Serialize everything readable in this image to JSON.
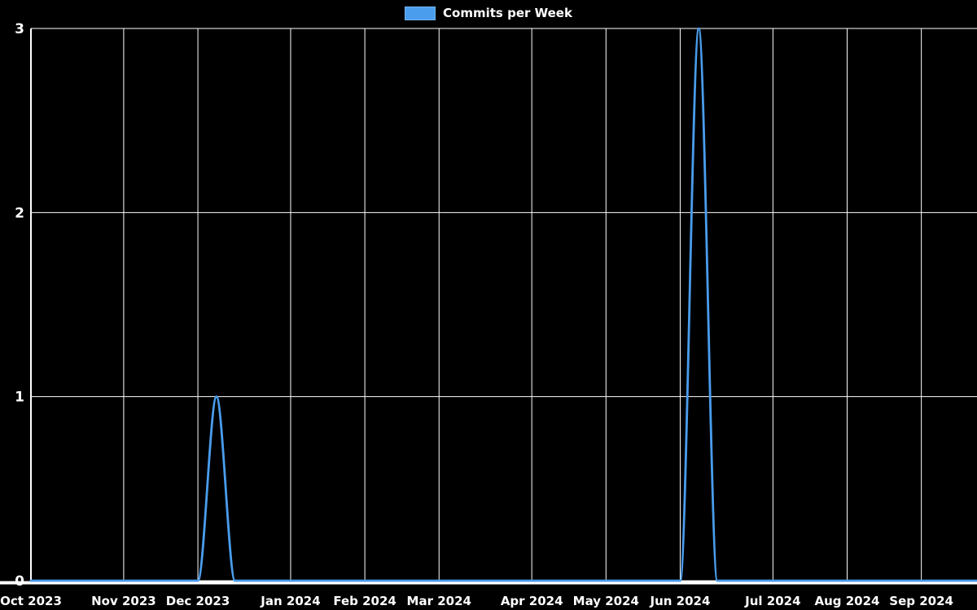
{
  "chart_data": {
    "type": "line",
    "title": "Commits per Week",
    "legend": "Commits per Week",
    "legend_position": "top-center",
    "x_unit": "week",
    "x_tick_labels": [
      "Oct 2023",
      "Nov 2023",
      "Dec 2023",
      "Jan 2024",
      "Feb 2024",
      "Mar 2024",
      "Apr 2024",
      "May 2024",
      "Jun 2024",
      "Jul 2024",
      "Aug 2024",
      "Sep 2024"
    ],
    "x_tick_week_index": [
      0,
      5,
      9,
      14,
      18,
      22,
      27,
      31,
      35,
      40,
      44,
      48
    ],
    "y_ticks": [
      0,
      1,
      2,
      3
    ],
    "ylim": [
      0,
      3
    ],
    "grid": true,
    "background_color": "#000000",
    "grid_color": "#ffffff",
    "axis_color": "#ffffff",
    "text_color": "#ffffff",
    "line_color": "#4a9ded",
    "series": [
      {
        "name": "Commits per Week",
        "values": [
          0,
          0,
          0,
          0,
          0,
          0,
          0,
          0,
          0,
          0,
          1,
          0,
          0,
          0,
          0,
          0,
          0,
          0,
          0,
          0,
          0,
          0,
          0,
          0,
          0,
          0,
          0,
          0,
          0,
          0,
          0,
          0,
          0,
          0,
          0,
          0,
          3,
          0,
          0,
          0,
          0,
          0,
          0,
          0,
          0,
          0,
          0,
          0,
          0,
          0,
          0,
          0
        ]
      }
    ]
  }
}
